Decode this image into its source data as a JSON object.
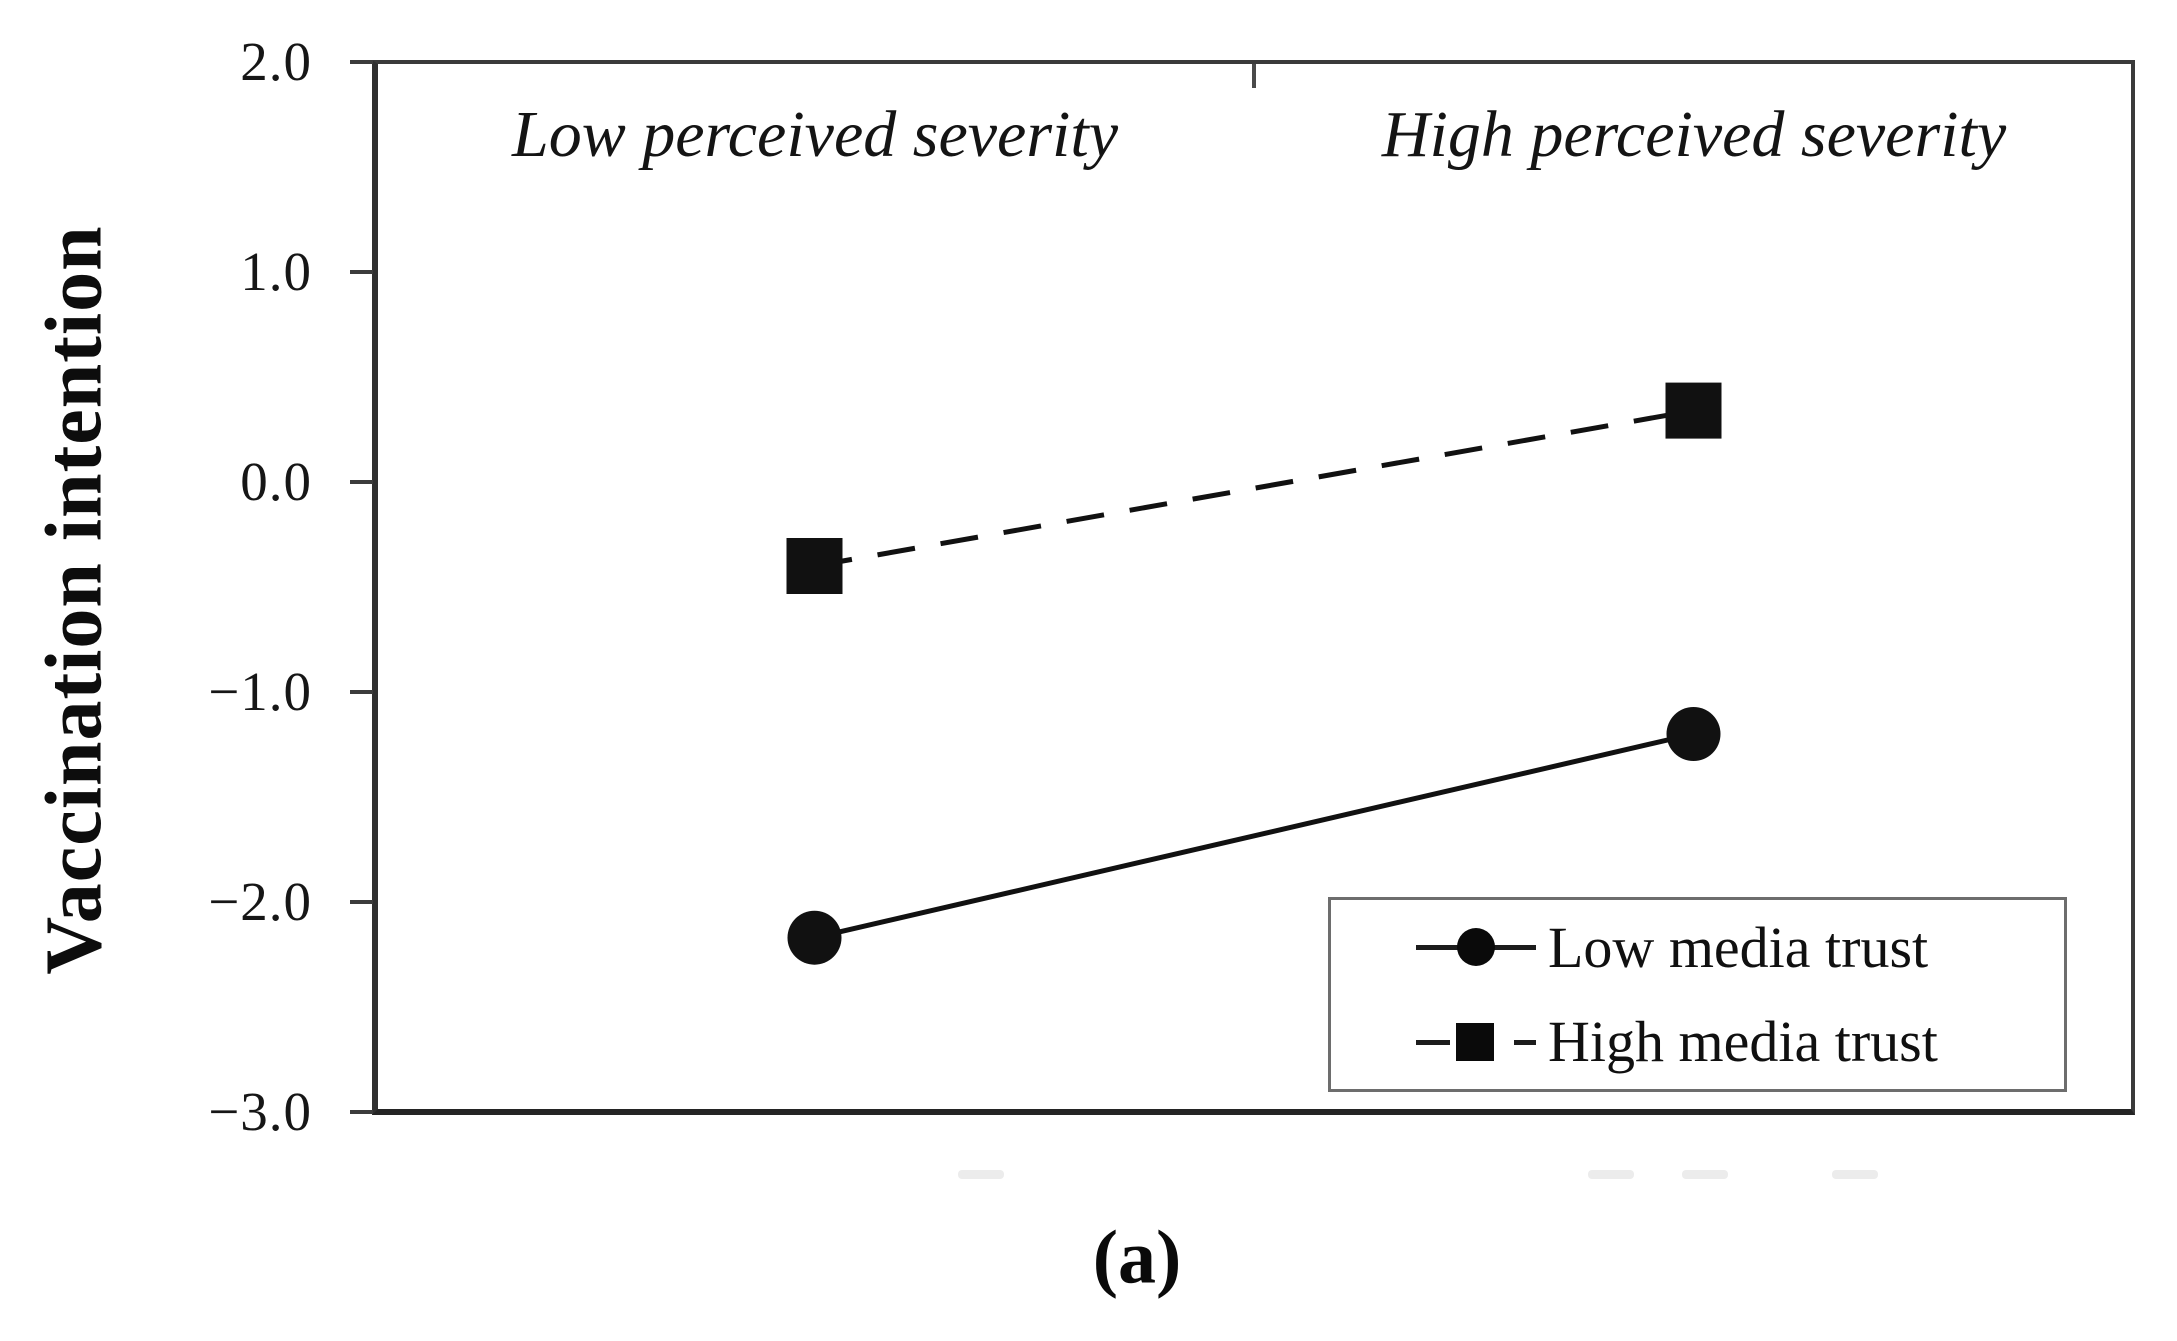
{
  "figure": {
    "caption": "(a)"
  },
  "chart_data": {
    "type": "line",
    "title": "",
    "xlabel": "",
    "ylabel": "Vaccination intention",
    "categories": [
      "Low perceived severity",
      "High perceived severity"
    ],
    "category_positions": [
      0.25,
      0.75
    ],
    "series": [
      {
        "name": "Low media trust",
        "marker": "circle",
        "line_style": "solid",
        "values": [
          -2.17,
          -1.2
        ]
      },
      {
        "name": "High media trust",
        "marker": "square",
        "line_style": "dashed",
        "values": [
          -0.4,
          0.34
        ]
      }
    ],
    "ylim": [
      -3.0,
      2.0
    ],
    "y_ticks": [
      {
        "label": "2.0",
        "value": 2.0
      },
      {
        "label": "1.0",
        "value": 1.0
      },
      {
        "label": "0.0",
        "value": 0.0
      },
      {
        "label": "−1.0",
        "value": -1.0
      },
      {
        "label": "−2.0",
        "value": -2.0
      },
      {
        "label": "−3.0",
        "value": -3.0
      }
    ],
    "grid": false,
    "legend_position": "bottom-right",
    "colors": {
      "series": "#111111",
      "background": "#ffffff",
      "frame": "#303030"
    }
  }
}
